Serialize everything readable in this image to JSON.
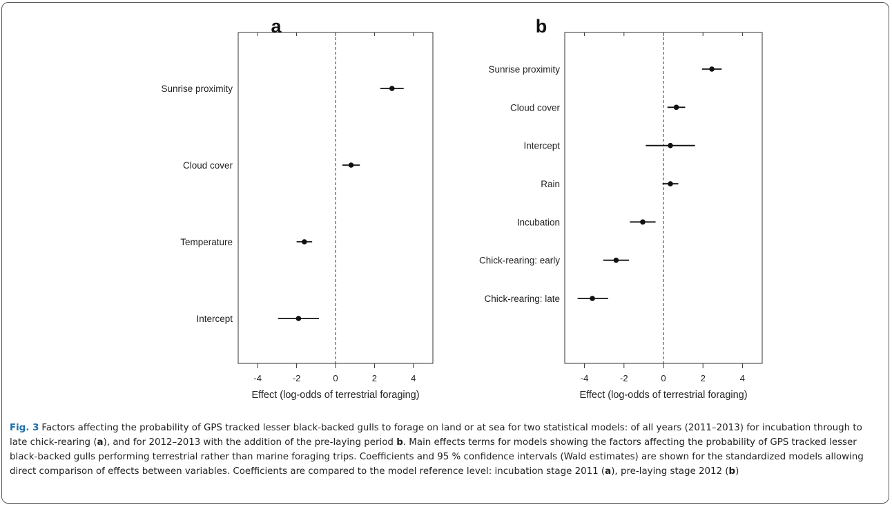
{
  "figure": {
    "caption_lead": "Fig. 3",
    "caption_parts": [
      {
        "t": "Factors affecting the probability of GPS tracked lesser black-backed gulls to forage on land or at sea for two statistical models: of all years (2011–2013) for incubation through to late chick-rearing (",
        "b": false
      },
      {
        "t": "a",
        "b": true
      },
      {
        "t": "), and for 2012–2013 with the addition of the pre-laying period ",
        "b": false
      },
      {
        "t": "b",
        "b": true
      },
      {
        "t": ". Main effects terms for models showing the factors affecting the probability of GPS tracked lesser black-backed gulls performing terrestrial rather than marine foraging trips. Coefficients and 95 % confidence intervals (Wald estimates) are shown for the standardized models allowing direct comparison of effects between variables. Coefficients are compared to the model reference level: incubation stage 2011 (",
        "b": false
      },
      {
        "t": "a",
        "b": true
      },
      {
        "t": "), pre-laying stage 2012 (",
        "b": false
      },
      {
        "t": "b",
        "b": true
      },
      {
        "t": ")",
        "b": false
      }
    ]
  },
  "chart_data": [
    {
      "type": "scatter",
      "panel_label": "a",
      "xlabel": "Effect (log-odds of terrestrial foraging)",
      "xlim": [
        -5,
        5
      ],
      "xticks": [
        -4,
        -2,
        0,
        2,
        4
      ],
      "reference_line": 0,
      "terms": [
        {
          "label": "Sunrise proximity",
          "estimate": 2.9,
          "lower": 2.3,
          "upper": 3.5
        },
        {
          "label": "Cloud cover",
          "estimate": 0.8,
          "lower": 0.35,
          "upper": 1.25
        },
        {
          "label": "Temperature",
          "estimate": -1.6,
          "lower": -2.0,
          "upper": -1.2
        },
        {
          "label": "Intercept",
          "estimate": -1.9,
          "lower": -2.95,
          "upper": -0.85
        }
      ]
    },
    {
      "type": "scatter",
      "panel_label": "b",
      "xlabel": "Effect (log-odds of terrestrial foraging)",
      "xlim": [
        -5,
        5
      ],
      "xticks": [
        -4,
        -2,
        0,
        2,
        4
      ],
      "reference_line": 0,
      "terms": [
        {
          "label": "Sunrise proximity",
          "estimate": 2.45,
          "lower": 1.95,
          "upper": 2.95
        },
        {
          "label": "Cloud cover",
          "estimate": 0.65,
          "lower": 0.2,
          "upper": 1.1
        },
        {
          "label": "Intercept",
          "estimate": 0.35,
          "lower": -0.9,
          "upper": 1.6
        },
        {
          "label": "Rain",
          "estimate": 0.35,
          "lower": -0.05,
          "upper": 0.75
        },
        {
          "label": "Incubation",
          "estimate": -1.05,
          "lower": -1.7,
          "upper": -0.4
        },
        {
          "label": "Chick-rearing: early",
          "estimate": -2.4,
          "lower": -3.05,
          "upper": -1.75
        },
        {
          "label": "Chick-rearing: late",
          "estimate": -3.6,
          "lower": -4.35,
          "upper": -2.8
        }
      ]
    }
  ]
}
